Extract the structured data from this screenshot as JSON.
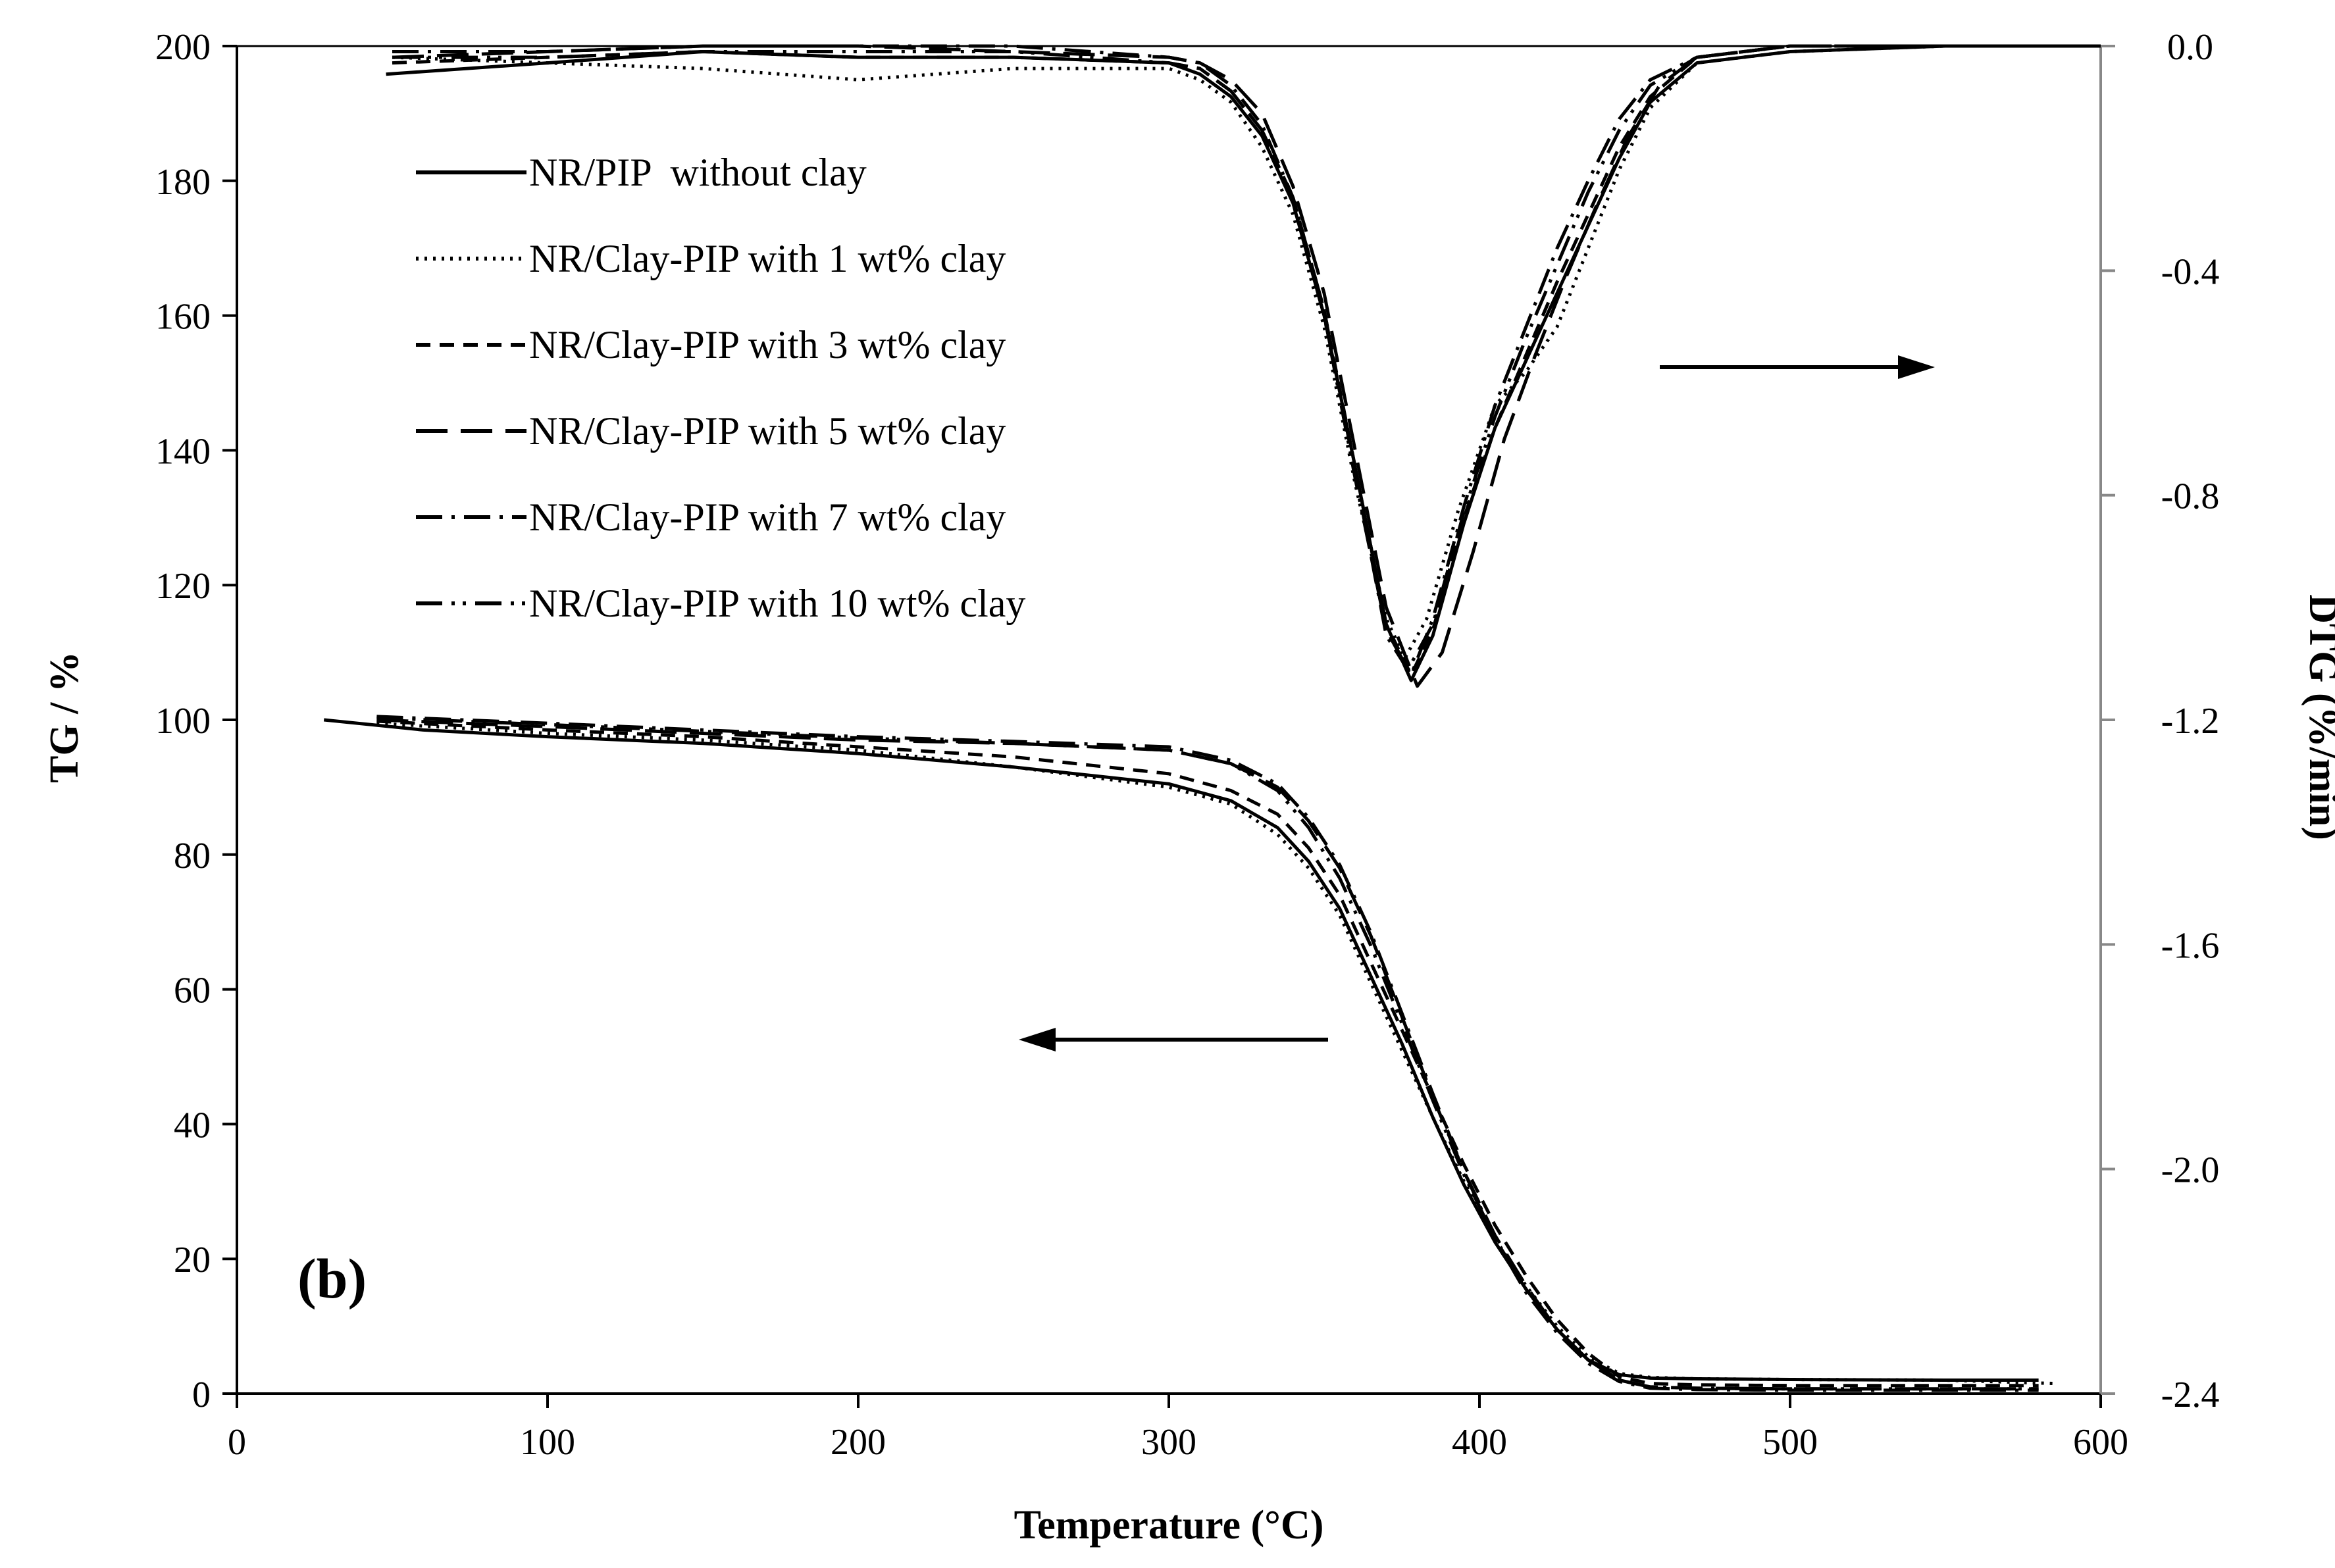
{
  "chart_data": {
    "type": "line",
    "panel_label": "(b)",
    "xlabel": "Temperature (°C)",
    "ylabel": "TG / %",
    "y2label": "DTG (%/min)",
    "xlim": [
      0,
      600
    ],
    "ylim": [
      0,
      200
    ],
    "y2lim": [
      -2.4,
      0.0
    ],
    "xticks": [
      0,
      100,
      200,
      300,
      400,
      500,
      600
    ],
    "yticks": [
      0,
      20,
      40,
      60,
      80,
      100,
      120,
      140,
      160,
      180,
      200
    ],
    "y2ticks": [
      "0.0",
      "-0.4",
      "-0.8",
      "-1.2",
      "-1.6",
      "-2.0",
      "-2.4"
    ],
    "grid": false,
    "legend_position": "top-left",
    "annotations": [
      {
        "type": "arrow",
        "direction": "right",
        "meaning": "DTG curves read on right axis"
      },
      {
        "type": "arrow",
        "direction": "left",
        "meaning": "TG curves read on left axis"
      }
    ],
    "series": [
      {
        "name": "NR/PIP  without clay",
        "dash": "solid",
        "tg": {
          "x": [
            28,
            60,
            100,
            150,
            200,
            250,
            300,
            320,
            335,
            345,
            355,
            365,
            375,
            385,
            395,
            405,
            415,
            425,
            435,
            445,
            455,
            470,
            500,
            550,
            580
          ],
          "y": [
            100,
            98.5,
            97.5,
            96.5,
            95,
            93,
            90.5,
            88,
            84,
            79,
            72,
            62,
            52,
            41,
            31,
            22.5,
            15.5,
            9.5,
            5,
            2.8,
            2.3,
            2.2,
            2.1,
            2.0,
            2.0
          ]
        },
        "dtg": {
          "x": [
            48,
            100,
            150,
            200,
            250,
            300,
            310,
            320,
            330,
            340,
            350,
            360,
            370,
            378,
            385,
            395,
            405,
            415,
            425,
            435,
            445,
            455,
            470,
            500,
            550,
            600
          ],
          "y": [
            -0.05,
            -0.03,
            -0.01,
            -0.02,
            -0.02,
            -0.03,
            -0.05,
            -0.09,
            -0.16,
            -0.28,
            -0.48,
            -0.75,
            -1.03,
            -1.13,
            -1.05,
            -0.85,
            -0.68,
            -0.56,
            -0.44,
            -0.32,
            -0.2,
            -0.1,
            -0.03,
            -0.01,
            0.0,
            0.0
          ]
        }
      },
      {
        "name": "NR/Clay-PIP with 1 wt% clay",
        "dash": "dotted",
        "tg": {
          "x": [
            45,
            100,
            150,
            200,
            250,
            300,
            320,
            335,
            345,
            355,
            365,
            375,
            385,
            395,
            405,
            415,
            425,
            435,
            445,
            455,
            470,
            500,
            550,
            585
          ],
          "y": [
            99.5,
            98,
            97,
            95.5,
            93,
            90,
            87.5,
            83,
            78,
            71,
            61,
            51,
            41,
            31.5,
            23,
            16,
            10,
            5.5,
            3,
            2.4,
            2.2,
            2.1,
            2.0,
            1.5
          ]
        },
        "dtg": {
          "x": [
            50,
            100,
            150,
            200,
            250,
            300,
            310,
            320,
            330,
            340,
            350,
            360,
            370,
            376,
            383,
            393,
            405,
            415,
            425,
            435,
            445,
            455,
            470,
            500,
            550,
            600
          ],
          "y": [
            -0.02,
            -0.03,
            -0.04,
            -0.06,
            -0.04,
            -0.04,
            -0.06,
            -0.1,
            -0.18,
            -0.3,
            -0.5,
            -0.78,
            -1.02,
            -1.09,
            -1.02,
            -0.83,
            -0.64,
            -0.58,
            -0.5,
            -0.36,
            -0.22,
            -0.11,
            -0.03,
            -0.01,
            0.0,
            0.0
          ]
        }
      },
      {
        "name": "NR/Clay-PIP with 3 wt% clay",
        "dash": "dashed",
        "tg": {
          "x": [
            45,
            100,
            150,
            200,
            250,
            300,
            320,
            335,
            345,
            355,
            365,
            375,
            385,
            395,
            405,
            415,
            425,
            435,
            445,
            455,
            470,
            500,
            550,
            580
          ],
          "y": [
            99.8,
            98.5,
            97.5,
            96,
            94.5,
            92,
            89.5,
            86,
            81,
            74,
            64,
            54,
            44,
            34,
            25,
            17.5,
            11,
            6,
            2.5,
            1.5,
            1.3,
            1.2,
            1.2,
            1.2
          ]
        },
        "dtg": {
          "x": [
            50,
            100,
            150,
            200,
            250,
            300,
            310,
            320,
            330,
            340,
            350,
            360,
            370,
            378,
            385,
            395,
            405,
            415,
            425,
            435,
            445,
            455,
            470,
            500,
            550,
            600
          ],
          "y": [
            -0.03,
            -0.02,
            -0.01,
            -0.02,
            -0.02,
            -0.03,
            -0.04,
            -0.08,
            -0.15,
            -0.27,
            -0.47,
            -0.75,
            -1.03,
            -1.12,
            -1.04,
            -0.84,
            -0.68,
            -0.55,
            -0.42,
            -0.3,
            -0.18,
            -0.09,
            -0.02,
            0.0,
            0.0,
            0.0
          ]
        }
      },
      {
        "name": "NR/Clay-PIP with 5 wt% clay",
        "dash": "long-dash",
        "tg": {
          "x": [
            45,
            100,
            150,
            200,
            250,
            300,
            320,
            335,
            345,
            355,
            365,
            375,
            385,
            395,
            405,
            415,
            425,
            435,
            445,
            455,
            470,
            500,
            550,
            580
          ],
          "y": [
            100,
            99,
            98,
            97,
            96.5,
            95.5,
            93.5,
            90,
            85,
            78,
            68,
            56,
            44,
            33,
            23.5,
            16,
            9.5,
            5,
            2,
            1,
            0.8,
            0.7,
            0.7,
            0.7
          ]
        },
        "dtg": {
          "x": [
            50,
            100,
            150,
            200,
            250,
            300,
            310,
            320,
            330,
            340,
            350,
            360,
            370,
            380,
            388,
            398,
            408,
            418,
            428,
            438,
            448,
            458,
            470,
            500,
            550,
            600
          ],
          "y": [
            -0.02,
            -0.01,
            0.0,
            0.0,
            -0.01,
            -0.02,
            -0.03,
            -0.06,
            -0.12,
            -0.25,
            -0.44,
            -0.72,
            -1.0,
            -1.14,
            -1.08,
            -0.9,
            -0.7,
            -0.55,
            -0.41,
            -0.28,
            -0.16,
            -0.07,
            -0.02,
            0.0,
            0.0,
            0.0
          ]
        }
      },
      {
        "name": "NR/Clay-PIP with 7 wt% clay",
        "dash": "dash-dot",
        "tg": {
          "x": [
            45,
            100,
            150,
            200,
            250,
            300,
            320,
            335,
            345,
            355,
            365,
            375,
            385,
            395,
            405,
            415,
            425,
            435,
            445,
            455,
            470,
            500,
            550,
            580
          ],
          "y": [
            100.5,
            99.5,
            98.5,
            97.5,
            96.8,
            96,
            94,
            90.5,
            85.5,
            78.5,
            68.5,
            56.5,
            44.5,
            33,
            23,
            15,
            9,
            4.5,
            1.8,
            0.8,
            0.6,
            0.5,
            0.5,
            0.5
          ]
        },
        "dtg": {
          "x": [
            50,
            100,
            150,
            200,
            250,
            300,
            310,
            320,
            330,
            340,
            350,
            360,
            370,
            378,
            385,
            395,
            405,
            415,
            425,
            435,
            445,
            455,
            470,
            500,
            550,
            600
          ],
          "y": [
            -0.01,
            -0.01,
            0.0,
            0.0,
            0.0,
            -0.02,
            -0.03,
            -0.07,
            -0.14,
            -0.27,
            -0.47,
            -0.76,
            -1.05,
            -1.12,
            -1.02,
            -0.82,
            -0.64,
            -0.5,
            -0.36,
            -0.24,
            -0.13,
            -0.06,
            -0.02,
            0.0,
            0.0,
            0.0
          ]
        }
      },
      {
        "name": "NR/Clay-PIP with 10 wt% clay",
        "dash": "dash-dot-dot",
        "tg": {
          "x": [
            45,
            100,
            150,
            200,
            250,
            300,
            320,
            335,
            345,
            355,
            365,
            375,
            385,
            395,
            405,
            415,
            425,
            435,
            445,
            455,
            470,
            500,
            550,
            580
          ],
          "y": [
            100.3,
            99.3,
            98.3,
            97.3,
            96.5,
            95.5,
            93.5,
            89.5,
            84,
            76.5,
            66.5,
            55,
            43.5,
            32.5,
            23,
            15.5,
            9.5,
            5,
            2,
            1,
            0.8,
            0.7,
            0.7,
            0.7
          ]
        },
        "dtg": {
          "x": [
            50,
            100,
            150,
            200,
            250,
            300,
            310,
            320,
            330,
            340,
            350,
            360,
            370,
            377,
            385,
            395,
            405,
            415,
            425,
            435,
            445,
            455,
            470,
            500,
            550,
            600
          ],
          "y": [
            -0.02,
            -0.02,
            -0.01,
            -0.01,
            -0.01,
            -0.03,
            -0.04,
            -0.08,
            -0.15,
            -0.28,
            -0.48,
            -0.77,
            -1.04,
            -1.11,
            -1.03,
            -0.83,
            -0.66,
            -0.52,
            -0.39,
            -0.26,
            -0.15,
            -0.07,
            -0.02,
            0.0,
            0.0,
            0.0
          ]
        }
      }
    ]
  }
}
